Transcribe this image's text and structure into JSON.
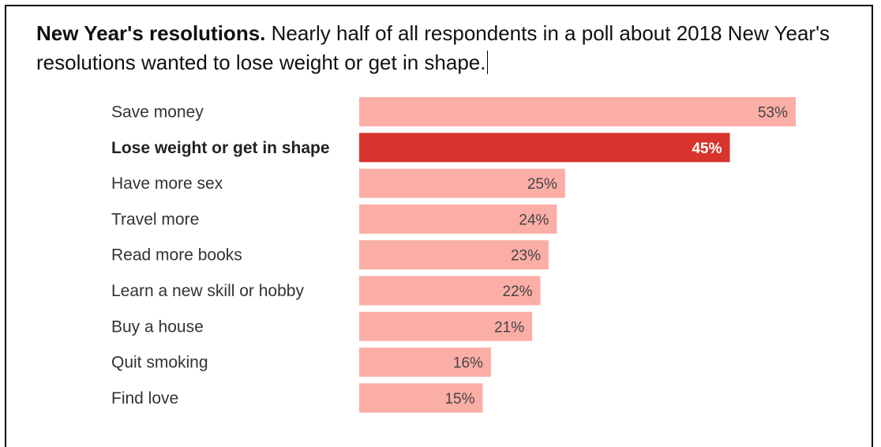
{
  "caption": {
    "lead": "New Year's resolutions.",
    "text": "Nearly half of all respondents in a poll about 2018 New Year's resolutions wanted to lose weight or get in shape."
  },
  "colors": {
    "bar": "#fbaea6",
    "bar_highlight": "#d6342c",
    "value_text": "#444444",
    "value_text_highlight": "#ffffff"
  },
  "chart_data": {
    "type": "bar",
    "orientation": "horizontal",
    "categories": [
      "Save money",
      "Lose weight or get in shape",
      "Have more sex",
      "Travel more",
      "Read more books",
      "Learn a new skill or hobby",
      "Buy a house",
      "Quit smoking",
      "Find love"
    ],
    "values": [
      53,
      45,
      25,
      24,
      23,
      22,
      21,
      16,
      15
    ],
    "value_labels": [
      "53%",
      "45%",
      "25%",
      "24%",
      "23%",
      "22%",
      "21%",
      "16%",
      "15%"
    ],
    "highlight_index": 1,
    "unit": "%",
    "xlim": [
      0,
      53
    ],
    "grid": false,
    "legend": false
  }
}
